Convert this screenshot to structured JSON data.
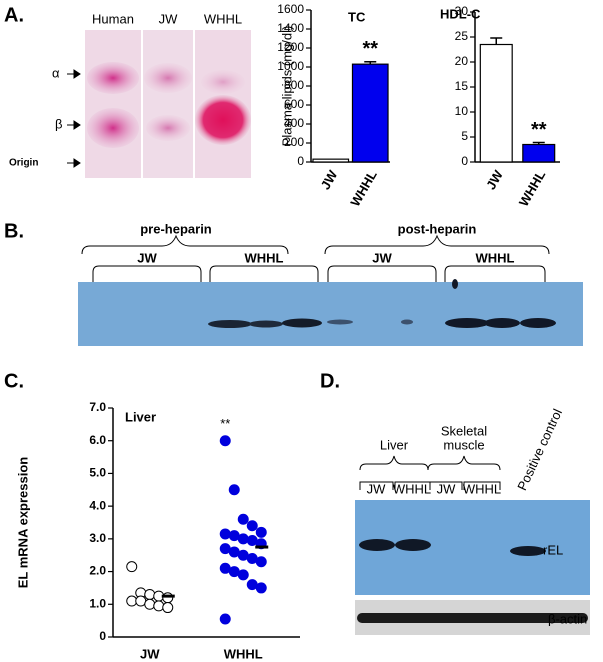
{
  "panel_labels": [
    "A.",
    "B.",
    "C.",
    "D."
  ],
  "panel_a": {
    "lanes": [
      "Human",
      "JW",
      "WHHL"
    ],
    "markers": [
      "α",
      "β",
      "Origin"
    ]
  },
  "panel_b": {
    "groups": [
      "pre-heparin",
      "post-heparin"
    ],
    "lanes": [
      "JW",
      "WHHL",
      "JW",
      "WHHL"
    ]
  },
  "panel_d": {
    "groups": [
      "Liver",
      "Skeletal",
      "muscle"
    ],
    "lanes": [
      "JW",
      "WHHL",
      "JW",
      "WHHL"
    ],
    "positive": "Positive control",
    "bands": [
      "rEL",
      "β-actin"
    ]
  },
  "chart_data": [
    {
      "type": "bar",
      "title": "TC",
      "ylabel": "Plasma lipids (mg/dl)",
      "categories": [
        "JW",
        "WHHL"
      ],
      "values": [
        30,
        1030
      ],
      "errors": [
        0,
        25
      ],
      "colors": [
        "#ffffff",
        "#0000ee"
      ],
      "annotation": "**",
      "ylim": [
        0,
        1600
      ],
      "yticks": [
        0,
        200,
        400,
        600,
        800,
        1000,
        1200,
        1400,
        1600
      ]
    },
    {
      "type": "bar",
      "title": "HDL-C",
      "categories": [
        "JW",
        "WHHL"
      ],
      "values": [
        23.5,
        3.5
      ],
      "errors": [
        1.3,
        0.4
      ],
      "colors": [
        "#ffffff",
        "#0000ee"
      ],
      "annotation": "**",
      "ylim": [
        0,
        30
      ],
      "yticks": [
        0,
        5,
        10,
        15,
        20,
        25,
        30
      ]
    },
    {
      "type": "scatter",
      "title": "Liver",
      "ylabel": "EL mRNA expression",
      "categories": [
        "JW",
        "WHHL"
      ],
      "series": [
        {
          "color": "#ffffff",
          "values": [
            2.15,
            1.35,
            1.3,
            1.25,
            1.2,
            1.1,
            1.1,
            1.0,
            0.95,
            0.9
          ]
        },
        {
          "color": "#0000dd",
          "values": [
            6.0,
            4.5,
            3.6,
            3.4,
            3.2,
            3.15,
            3.1,
            3.0,
            2.95,
            2.85,
            2.7,
            2.6,
            2.5,
            2.4,
            2.3,
            2.1,
            2.0,
            1.9,
            1.6,
            1.5,
            0.55
          ]
        }
      ],
      "medians": [
        1.25,
        2.75
      ],
      "annotation": "**",
      "ylim": [
        0,
        7
      ],
      "yticks": [
        0,
        {
          "value": 1,
          "label": "1.0"
        },
        {
          "value": 2,
          "label": "2.0"
        },
        {
          "value": 3,
          "label": "3.0"
        },
        {
          "value": 4,
          "label": "4.0"
        },
        {
          "value": 5,
          "label": "5.0"
        },
        {
          "value": 6,
          "label": "6.0"
        },
        {
          "value": 7,
          "label": "7.0"
        }
      ]
    }
  ]
}
